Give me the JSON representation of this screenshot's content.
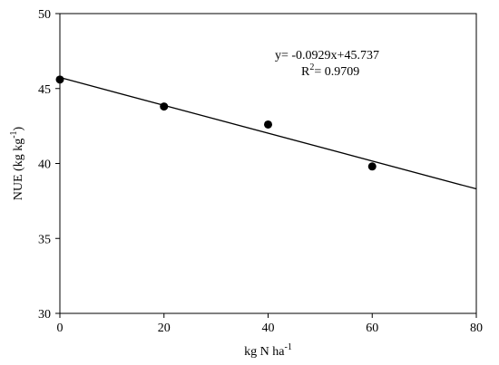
{
  "chart_data": {
    "type": "scatter",
    "xlabel": "kg N ha",
    "xlabel_sup": "-1",
    "ylabel_main": "NUE (kg kg",
    "ylabel_sup": "-1",
    "ylabel_close": ")",
    "xlim": [
      0,
      80
    ],
    "ylim": [
      30,
      50
    ],
    "xticks": [
      0,
      20,
      40,
      60,
      80
    ],
    "yticks": [
      30,
      35,
      40,
      45,
      50
    ],
    "grid": false,
    "series": [
      {
        "points": [
          {
            "x": 0,
            "y": 45.6
          },
          {
            "x": 20,
            "y": 43.8
          },
          {
            "x": 40,
            "y": 42.6
          },
          {
            "x": 60,
            "y": 39.8
          }
        ]
      }
    ],
    "trendline": {
      "slope": -0.0929,
      "intercept": 45.737
    },
    "annotation": {
      "equation": "y= -0.0929x+45.737",
      "r2_prefix": "R",
      "r2_sup": "2",
      "r2_value": "= 0.9709"
    },
    "colors": {
      "marker": "#000000",
      "line": "#000000",
      "axis": "#000000"
    }
  }
}
